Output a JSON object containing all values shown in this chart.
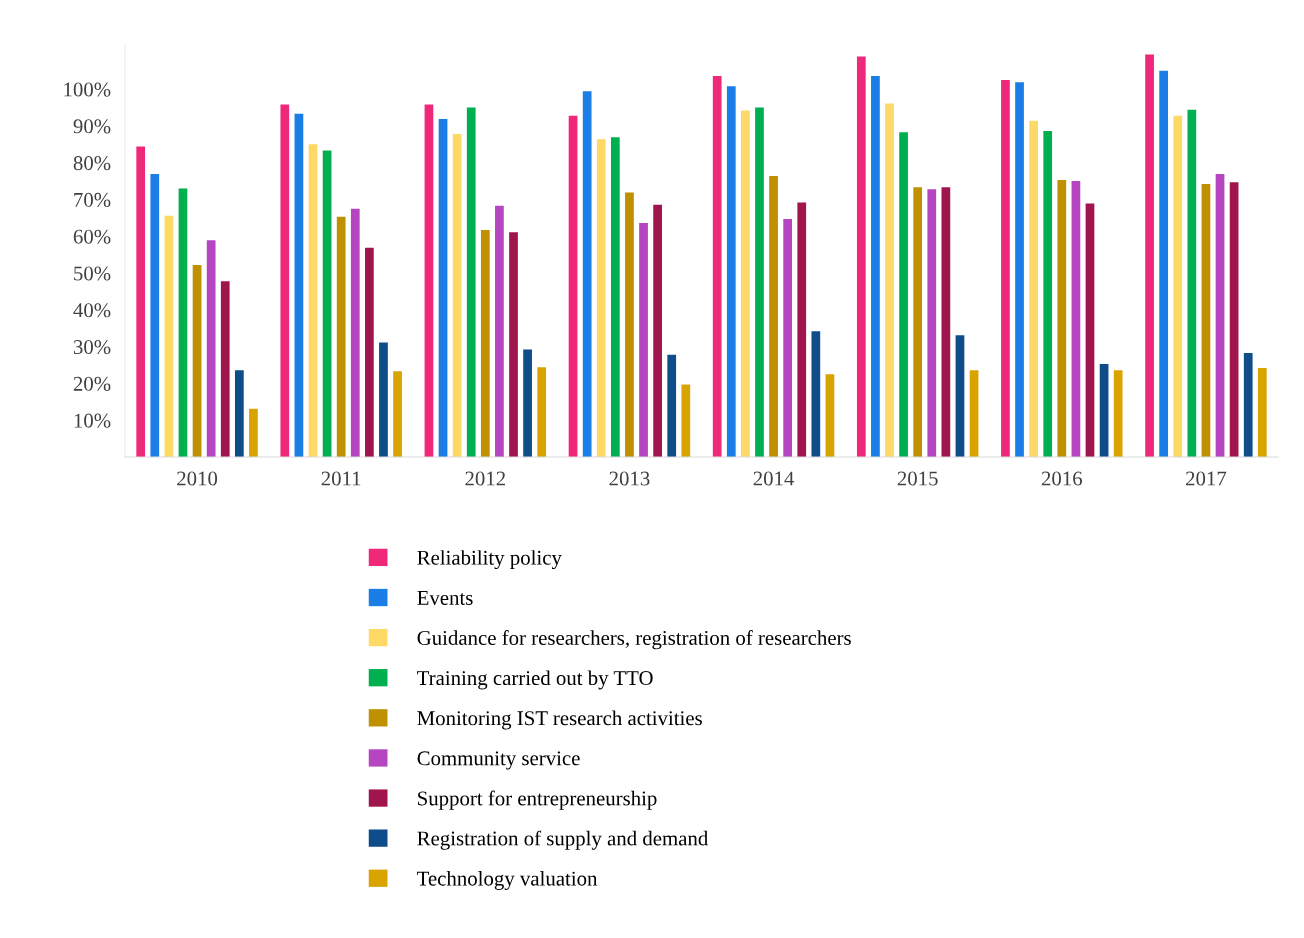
{
  "chart_data": {
    "type": "bar",
    "categories": [
      "2010",
      "2011",
      "2012",
      "2013",
      "2014",
      "2015",
      "2016",
      "2017"
    ],
    "series": [
      {
        "name": "Reliability policy",
        "color": "#f0287a",
        "values": [
          84.4,
          95.8,
          95.8,
          92.8,
          103.6,
          108.9,
          102.5,
          109.4
        ]
      },
      {
        "name": "Events",
        "color": "#1a7ee6",
        "values": [
          76.9,
          93.3,
          91.9,
          99.4,
          100.8,
          103.6,
          101.9,
          105.0
        ]
      },
      {
        "name": "Guidance for researchers, registration of researchers",
        "color": "#ffd966",
        "values": [
          65.6,
          85.0,
          87.8,
          86.4,
          94.2,
          96.1,
          91.4,
          92.8
        ]
      },
      {
        "name": "Training carried out by TTO",
        "color": "#00b050",
        "values": [
          73.0,
          83.3,
          95.0,
          86.9,
          95.0,
          88.3,
          88.6,
          94.4
        ]
      },
      {
        "name": "Monitoring IST research activities",
        "color": "#bf9000",
        "values": [
          52.2,
          65.3,
          61.7,
          71.9,
          76.4,
          73.3,
          75.3,
          74.2
        ]
      },
      {
        "name": "Community service",
        "color": "#b545c0",
        "values": [
          58.9,
          67.5,
          68.3,
          63.6,
          64.7,
          72.8,
          75.0,
          76.9
        ]
      },
      {
        "name": "Support for entrepreneurship",
        "color": "#a0154e",
        "values": [
          47.8,
          56.9,
          61.1,
          68.6,
          69.2,
          73.3,
          68.9,
          74.7
        ]
      },
      {
        "name": "Registration of supply and demand",
        "color": "#0f4c8a",
        "values": [
          23.6,
          31.1,
          29.2,
          27.8,
          34.2,
          33.1,
          25.3,
          28.3
        ]
      },
      {
        "name": "Technology valuation",
        "color": "#d9a400",
        "values": [
          13.1,
          23.3,
          24.4,
          19.7,
          22.5,
          23.6,
          23.6,
          24.2
        ]
      }
    ],
    "yticks": [
      {
        "value": 10,
        "label": "10%"
      },
      {
        "value": 20,
        "label": "20%"
      },
      {
        "value": 30,
        "label": "30%"
      },
      {
        "value": 40,
        "label": "40%"
      },
      {
        "value": 50,
        "label": "50%"
      },
      {
        "value": 60,
        "label": "60%"
      },
      {
        "value": 70,
        "label": "70%"
      },
      {
        "value": 80,
        "label": "80%"
      },
      {
        "value": 90,
        "label": "90%"
      },
      {
        "value": 100,
        "label": "100%"
      }
    ],
    "ylim": [
      0,
      112
    ],
    "grid": false,
    "legend": "bottom"
  }
}
